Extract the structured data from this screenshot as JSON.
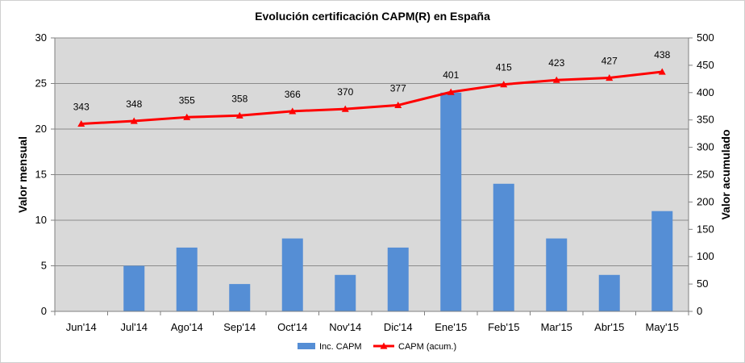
{
  "chart_data": {
    "type": "bar",
    "title": "Evolución certificación CAPM(R) en España",
    "categories": [
      "Jun'14",
      "Jul'14",
      "Ago'14",
      "Sep'14",
      "Oct'14",
      "Nov'14",
      "Dic'14",
      "Ene'15",
      "Feb'15",
      "Mar'15",
      "Abr'15",
      "May'15"
    ],
    "ylabel": "Valor mensual",
    "y2label": "Valor acumulado",
    "ylim": [
      0,
      30
    ],
    "y2lim": [
      0,
      500
    ],
    "yticks": [
      "0",
      "5",
      "10",
      "15",
      "20",
      "25",
      "30"
    ],
    "y2ticks": [
      "0",
      "50",
      "100",
      "150",
      "200",
      "250",
      "300",
      "350",
      "400",
      "450",
      "500"
    ],
    "grid": true,
    "legend_position": "bottom",
    "series": [
      {
        "name": "Inc. CAPM",
        "type": "bar",
        "axis": "left",
        "color": "#558ed5",
        "values": [
          0,
          5,
          7,
          3,
          8,
          4,
          7,
          24,
          14,
          8,
          4,
          11
        ]
      },
      {
        "name": "CAPM (acum.)",
        "type": "line",
        "axis": "right",
        "color": "#ff0000",
        "marker": "triangle",
        "values": [
          343,
          348,
          355,
          358,
          366,
          370,
          377,
          401,
          415,
          423,
          427,
          438
        ],
        "labels": [
          "343",
          "348",
          "355",
          "358",
          "366",
          "370",
          "377",
          "401",
          "415",
          "423",
          "427",
          "438"
        ]
      }
    ],
    "colors": {
      "plot_background": "#d9d9d9",
      "gridline": "#8c8c8c"
    }
  }
}
